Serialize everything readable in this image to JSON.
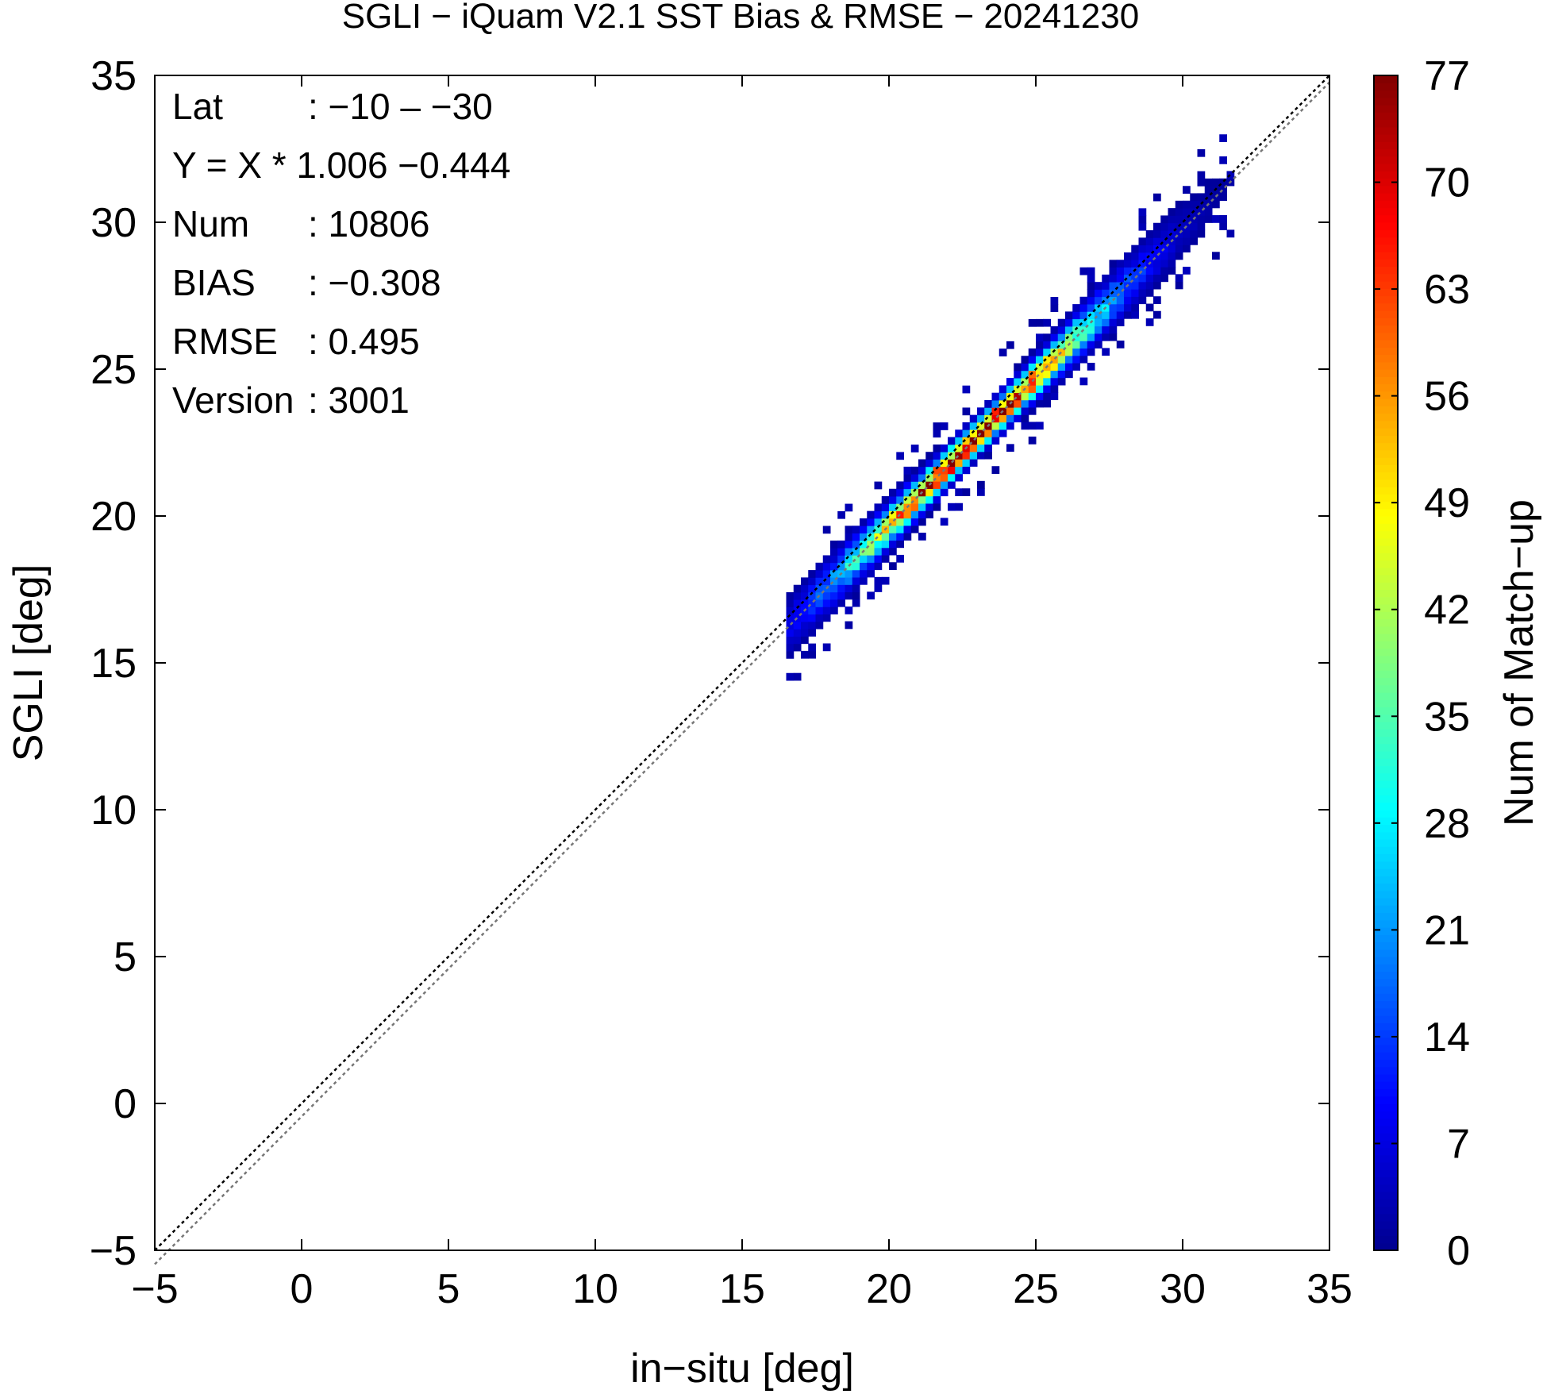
{
  "chart_data": {
    "type": "heatmap",
    "title": "SGLI − iQuam V2.1 SST Bias & RMSE  − 20241230",
    "xlabel": "in−situ [deg]",
    "ylabel": "SGLI [deg]",
    "xlim": [
      -5,
      35
    ],
    "ylim": [
      -5,
      35
    ],
    "x_ticks": [
      "−5",
      "0",
      "5",
      "10",
      "15",
      "20",
      "25",
      "30",
      "35"
    ],
    "y_ticks": [
      "−5",
      "0",
      "5",
      "10",
      "15",
      "20",
      "25",
      "30",
      "35"
    ],
    "colorbar": {
      "label": "Num of Match−up",
      "range": [
        0,
        77
      ],
      "ticks": [
        "0",
        "7",
        "14",
        "21",
        "28",
        "35",
        "42",
        "49",
        "56",
        "63",
        "70",
        "77"
      ],
      "colormap": [
        "#00008f",
        "#0000ff",
        "#0080ff",
        "#00ffff",
        "#80ff80",
        "#ffff00",
        "#ff8000",
        "#ff0000",
        "#800000"
      ]
    },
    "stats": [
      {
        "label": "Lat",
        "value": ": −10 – −30"
      },
      {
        "label": "Y = X * 1.006 −0.444",
        "value": ""
      },
      {
        "label": "Num",
        "value": ": 10806"
      },
      {
        "label": "BIAS",
        "value": ": −0.308"
      },
      {
        "label": "RMSE",
        "value": ": 0.495"
      },
      {
        "label": "Version",
        "value": ": 3001"
      }
    ],
    "lines": [
      {
        "kind": "1:1",
        "slope": 1.0,
        "intercept": 0.0,
        "color": "#000000",
        "style": "dotted"
      },
      {
        "kind": "fit",
        "slope": 1.006,
        "intercept": -0.444,
        "color": "#777777",
        "style": "dotted"
      }
    ],
    "density_ridge": {
      "x_range": [
        16.5,
        31.5
      ],
      "slope": 1.006,
      "intercept": -0.444,
      "peak_x": 22.8,
      "peak_count": 77
    },
    "grid": false,
    "legend": "colorbar-right"
  }
}
